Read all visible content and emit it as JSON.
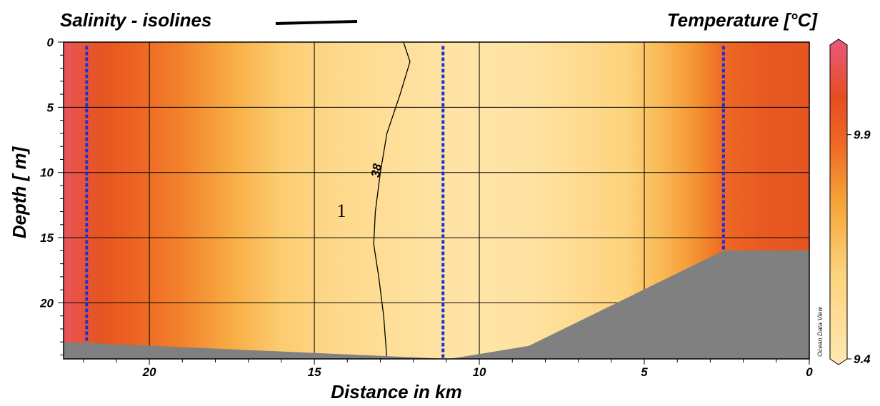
{
  "chart_data": {
    "type": "heatmap",
    "title_left": "Salinity - isolines",
    "title_right": "Temperature  [°C]",
    "xlabel": "Distance in km",
    "ylabel": "Depth  [ m]",
    "xlim": [
      22.6,
      0
    ],
    "ylim": [
      0,
      24.3
    ],
    "x_ticks": [
      20,
      15,
      10,
      5,
      0
    ],
    "y_ticks": [
      0,
      5,
      10,
      15,
      20
    ],
    "colorbar": {
      "min": 9.4,
      "max": 10.1,
      "ticks": [
        9.9,
        9.4
      ],
      "label": "Ocean Data View"
    },
    "stations_km": [
      21.9,
      11.1,
      2.6
    ],
    "temperature_profile": {
      "x_km": [
        22.6,
        21.5,
        20.5,
        19,
        17.5,
        16,
        14.5,
        13,
        11.5,
        10,
        8.5,
        7,
        5.5,
        4.5,
        3.5,
        2.6,
        1.5,
        0
      ],
      "temp_c": [
        10.05,
        9.95,
        9.9,
        9.82,
        9.72,
        9.62,
        9.55,
        9.5,
        9.46,
        9.44,
        9.46,
        9.52,
        9.6,
        9.68,
        9.78,
        9.88,
        9.93,
        9.95
      ]
    },
    "isoline": {
      "label": "38",
      "points": [
        [
          12.3,
          0
        ],
        [
          12.1,
          1.5
        ],
        [
          12.4,
          4
        ],
        [
          12.8,
          7
        ],
        [
          13.0,
          10
        ],
        [
          13.15,
          13
        ],
        [
          13.2,
          15.5
        ],
        [
          13.05,
          18
        ],
        [
          12.9,
          21
        ],
        [
          12.8,
          24.3
        ]
      ]
    },
    "bottom_topography": [
      [
        22.6,
        23.0
      ],
      [
        10.9,
        24.3
      ],
      [
        8.5,
        23.3
      ],
      [
        2.6,
        16.0
      ],
      [
        0,
        16.0
      ]
    ],
    "annotation": "1"
  }
}
